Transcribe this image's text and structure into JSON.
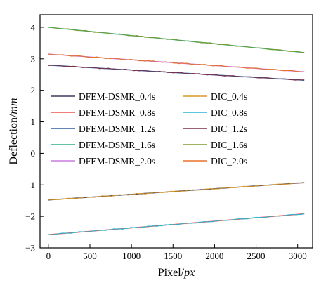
{
  "chart_data": {
    "type": "line",
    "title": "",
    "xlabel": {
      "prefix": "Pixel/",
      "italic": "px"
    },
    "ylabel": {
      "prefix": "Deflection/",
      "italic": "mm"
    },
    "xlim": [
      -100,
      3180
    ],
    "ylim": [
      -3,
      4.4
    ],
    "x_ticks": [
      0,
      500,
      1000,
      1500,
      2000,
      2500,
      3000
    ],
    "y_ticks": [
      -3,
      -2,
      -1,
      0,
      1,
      2,
      3,
      4
    ],
    "grid": false,
    "legend": {
      "placement": "center-left",
      "columns": 2
    },
    "x": [
      0,
      3080
    ],
    "series": [
      {
        "name": "DFEM-DSMR_0.4s",
        "color": "#3b3b5c",
        "values": [
          -1.48,
          -0.93
        ]
      },
      {
        "name": "DIC_0.4s",
        "color": "#d79a2a",
        "values": [
          -1.48,
          -0.93
        ]
      },
      {
        "name": "DFEM-DSMR_0.8s",
        "color": "#e8564a",
        "values": [
          -2.58,
          -1.92
        ]
      },
      {
        "name": "DIC_0.8s",
        "color": "#27b5d6",
        "values": [
          -2.58,
          -1.92
        ]
      },
      {
        "name": "DFEM-DSMR_1.2s",
        "color": "#2a5d9e",
        "values": [
          2.8,
          2.32
        ]
      },
      {
        "name": "DIC_1.2s",
        "color": "#7a2f4a",
        "values": [
          2.8,
          2.32
        ]
      },
      {
        "name": "DFEM-DSMR_1.6s",
        "color": "#2fae8c",
        "values": [
          4.0,
          3.2
        ]
      },
      {
        "name": "DIC_1.6s",
        "color": "#7f9a2a",
        "values": [
          4.0,
          3.2
        ]
      },
      {
        "name": "DFEM-DSMR_2.0s",
        "color": "#c77de0",
        "values": [
          3.15,
          2.59
        ]
      },
      {
        "name": "DIC_2.0s",
        "color": "#e7702a",
        "values": [
          3.15,
          2.59
        ]
      }
    ]
  }
}
